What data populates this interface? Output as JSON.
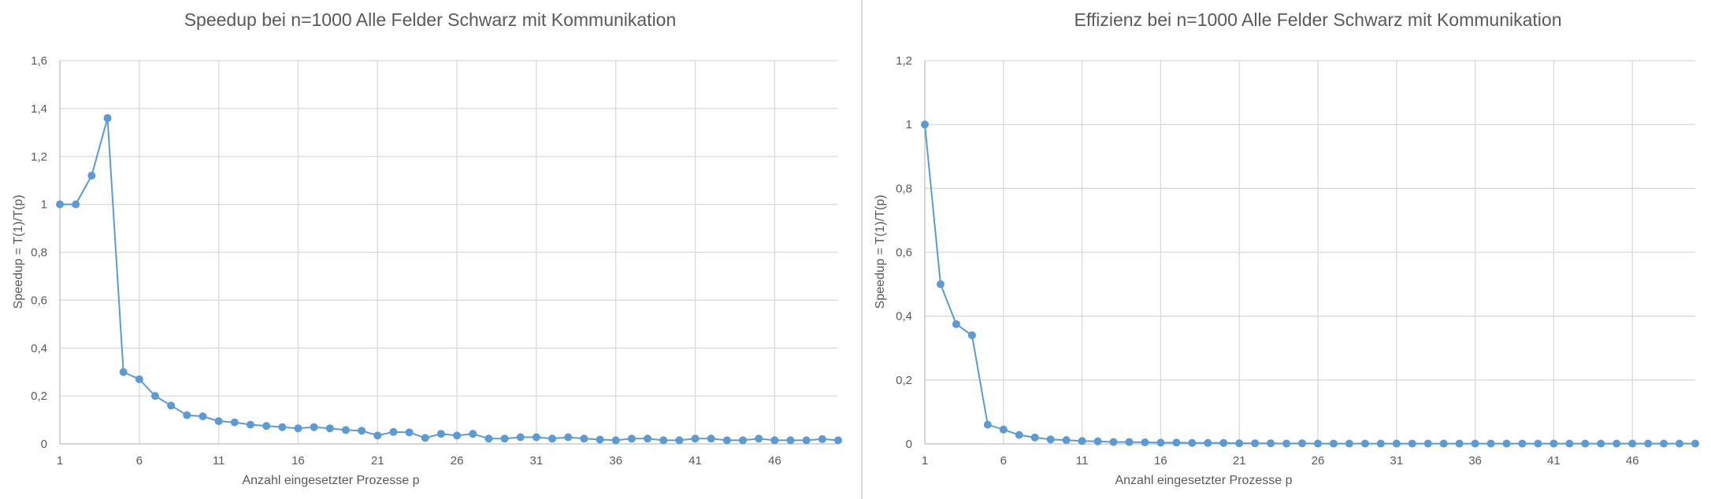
{
  "chart_data": [
    {
      "type": "line",
      "title": "Speedup bei n=1000 Alle Felder Schwarz mit Kommunikation",
      "xlabel": "Anzahl eingesetzter Prozesse p",
      "ylabel": "Speedup = T(1)/T(p)",
      "x_tick_labels": [
        "1",
        "6",
        "11",
        "16",
        "21",
        "26",
        "31",
        "36",
        "41",
        "46"
      ],
      "y_tick_labels": [
        "0",
        "0,2",
        "0,4",
        "0,6",
        "0,8",
        "1",
        "1,2",
        "1,4",
        "1,6"
      ],
      "xlim": [
        1,
        50
      ],
      "ylim": [
        0,
        1.6
      ],
      "grid": true,
      "legend": "none",
      "color": "#5b9bd5",
      "x": [
        1,
        2,
        3,
        4,
        5,
        6,
        7,
        8,
        9,
        10,
        11,
        12,
        13,
        14,
        15,
        16,
        17,
        18,
        19,
        20,
        21,
        22,
        23,
        24,
        25,
        26,
        27,
        28,
        29,
        30,
        31,
        32,
        33,
        34,
        35,
        36,
        37,
        38,
        39,
        40,
        41,
        42,
        43,
        44,
        45,
        46,
        47,
        48,
        49,
        50
      ],
      "values": [
        1.0,
        1.0,
        1.12,
        1.36,
        0.3,
        0.27,
        0.2,
        0.16,
        0.12,
        0.115,
        0.095,
        0.09,
        0.08,
        0.075,
        0.07,
        0.065,
        0.07,
        0.065,
        0.058,
        0.055,
        0.035,
        0.05,
        0.048,
        0.025,
        0.042,
        0.035,
        0.042,
        0.022,
        0.022,
        0.028,
        0.028,
        0.022,
        0.028,
        0.022,
        0.018,
        0.015,
        0.022,
        0.022,
        0.015,
        0.015,
        0.022,
        0.022,
        0.015,
        0.015,
        0.022,
        0.015,
        0.015,
        0.015,
        0.02,
        0.015
      ]
    },
    {
      "type": "line",
      "title": "Effizienz bei n=1000 Alle Felder Schwarz mit Kommunikation",
      "xlabel": "Anzahl eingesetzter Prozesse p",
      "ylabel": "Speedup = T(1)/T(p)",
      "x_tick_labels": [
        "1",
        "6",
        "11",
        "16",
        "21",
        "26",
        "31",
        "36",
        "41",
        "46"
      ],
      "y_tick_labels": [
        "0",
        "0,2",
        "0,4",
        "0,6",
        "0,8",
        "1",
        "1,2"
      ],
      "xlim": [
        1,
        50
      ],
      "ylim": [
        0,
        1.2
      ],
      "grid": true,
      "legend": "none",
      "color": "#5b9bd5",
      "x": [
        1,
        2,
        3,
        4,
        5,
        6,
        7,
        8,
        9,
        10,
        11,
        12,
        13,
        14,
        15,
        16,
        17,
        18,
        19,
        20,
        21,
        22,
        23,
        24,
        25,
        26,
        27,
        28,
        29,
        30,
        31,
        32,
        33,
        34,
        35,
        36,
        37,
        38,
        39,
        40,
        41,
        42,
        43,
        44,
        45,
        46,
        47,
        48,
        49,
        50
      ],
      "values": [
        1.0,
        0.5,
        0.375,
        0.34,
        0.06,
        0.045,
        0.028,
        0.02,
        0.014,
        0.012,
        0.009,
        0.008,
        0.006,
        0.006,
        0.005,
        0.004,
        0.004,
        0.003,
        0.003,
        0.003,
        0.002,
        0.002,
        0.002,
        0.001,
        0.002,
        0.001,
        0.001,
        0.001,
        0.001,
        0.001,
        0.001,
        0.001,
        0.001,
        0.001,
        0.001,
        0.001,
        0.001,
        0.001,
        0.001,
        0.001,
        0.001,
        0.001,
        0.001,
        0.001,
        0.001,
        0.001,
        0.001,
        0.001,
        0.001,
        0.001
      ]
    }
  ]
}
